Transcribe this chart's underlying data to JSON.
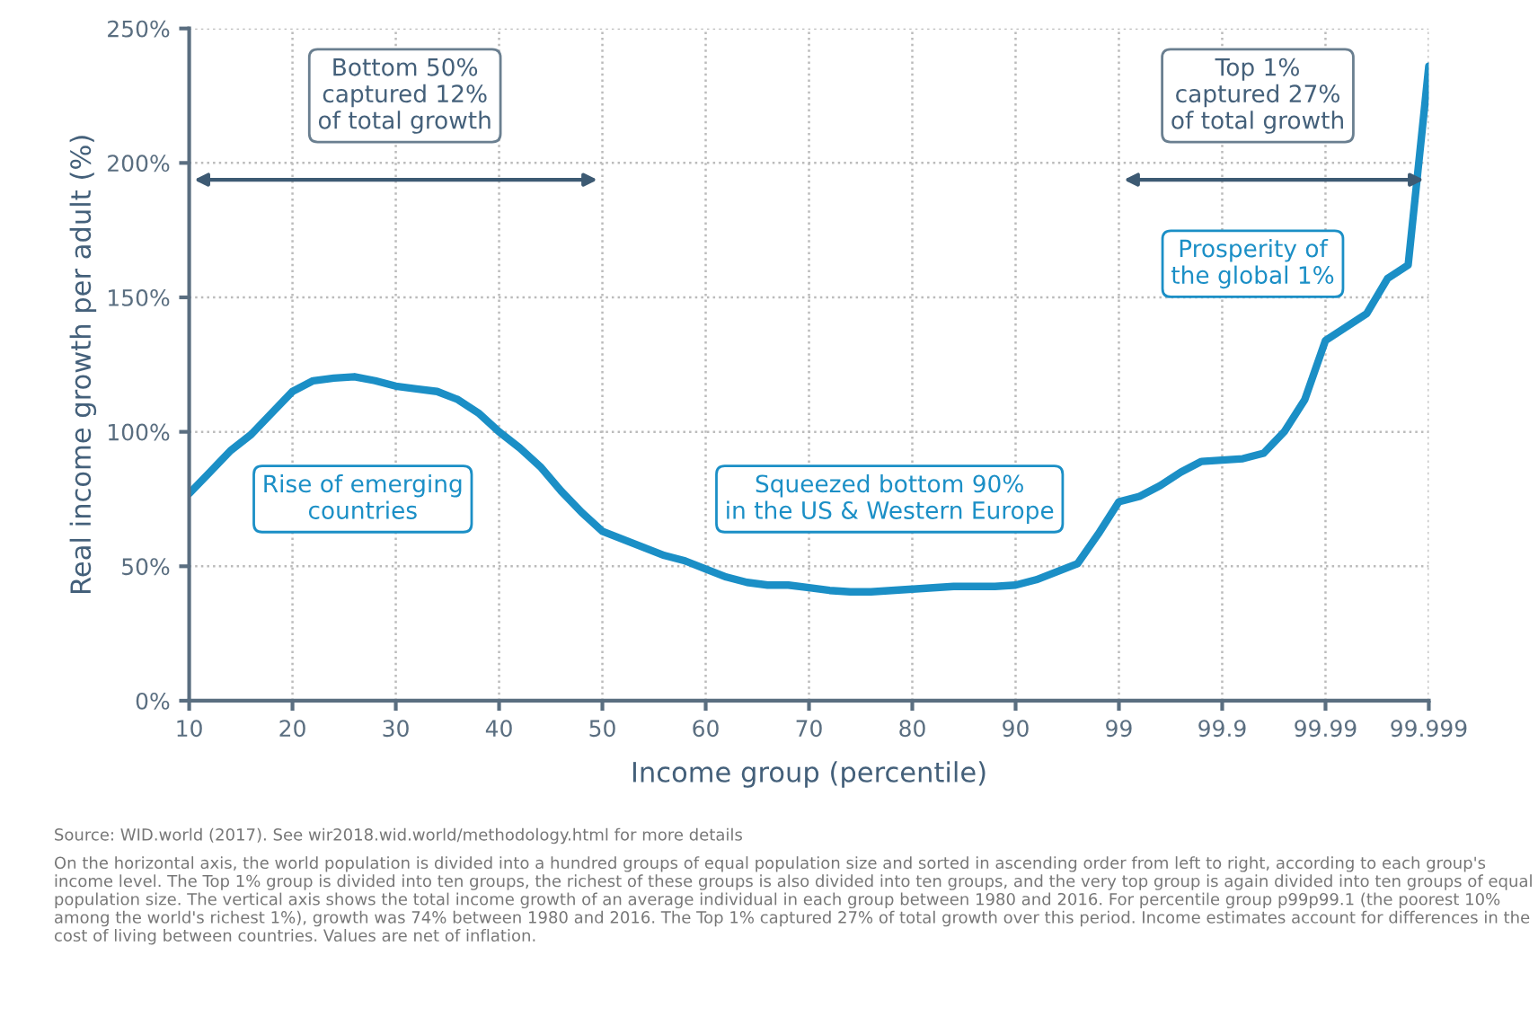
{
  "chart_data": {
    "type": "line",
    "xlabel": "Income group (percentile)",
    "ylabel": "Real income growth per adult (%)",
    "categories": [
      "10",
      null,
      null,
      null,
      null,
      "20",
      null,
      null,
      null,
      null,
      "30",
      null,
      null,
      null,
      null,
      "40",
      null,
      null,
      null,
      null,
      "50",
      null,
      null,
      null,
      null,
      "60",
      null,
      null,
      null,
      null,
      "70",
      null,
      null,
      null,
      null,
      "80",
      null,
      null,
      null,
      null,
      "90",
      null,
      null,
      null,
      null,
      "99",
      null,
      null,
      null,
      null,
      "99.9",
      null,
      null,
      null,
      null,
      "99.99",
      null,
      null,
      null,
      null,
      "99.999"
    ],
    "series": [
      {
        "color": "#1b8fc6",
        "values": [
          77,
          85,
          93,
          99,
          107,
          115,
          119,
          120,
          120.5,
          119,
          117,
          116,
          115,
          112,
          107,
          100,
          94,
          87,
          78,
          70,
          63,
          60,
          57,
          54,
          52,
          49,
          46,
          44,
          43,
          43,
          42,
          41,
          40.5,
          40.5,
          41,
          41.5,
          42,
          42.5,
          42.5,
          42.5,
          43,
          45,
          48,
          51,
          62,
          74,
          76,
          80,
          85,
          89,
          89.5,
          90,
          92,
          100,
          112,
          134,
          139,
          144,
          157,
          162,
          236
        ]
      }
    ],
    "ylim": [
      0,
      250
    ],
    "yticks": [
      {
        "value": 0,
        "label": "0%"
      },
      {
        "value": 50,
        "label": "50%"
      },
      {
        "value": 100,
        "label": "100%"
      },
      {
        "value": 150,
        "label": "150%"
      },
      {
        "value": 200,
        "label": "200%"
      },
      {
        "value": 250,
        "label": "250%"
      }
    ],
    "grid": true,
    "legend": false,
    "line_style": "solid",
    "annotations": [
      "Bottom 50%\ncaptured 12%\nof total growth",
      "Top 1%\ncaptured 27%\nof total growth",
      "Rise of emerging\ncountries",
      "Squeezed bottom 90%\nin the US & Western Europe",
      "Prosperity of\nthe global 1%",
      "Source: WID.world (2017). See wir2018.wid.world/methodology.html for more details",
      "On the horizontal axis, the world population is divided into a hundred groups of equal population size and sorted in ascending order from left to right, according to each group's income level. The Top 1% group is divided into ten groups, the richest of these groups is also divided into ten groups, and the very top group is again divided into ten groups of equal population size. The vertical axis shows the total income growth of an average individual in each group between 1980 and 2016. For percentile group p99p99.1 (the poorest 10% among the world's richest 1%), growth was 74% between 1980 and 2016. The Top 1% captured 27% of total growth over this period. Income estimates account for differences in the cost of living between countries. Values are net of inflation."
    ]
  }
}
